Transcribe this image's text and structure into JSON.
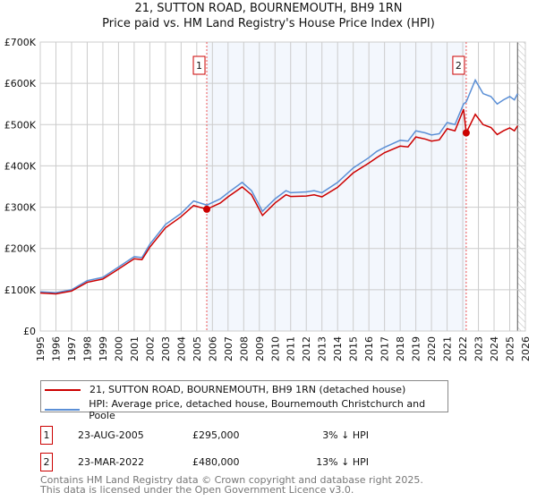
{
  "title": "21, SUTTON ROAD, BOURNEMOUTH, BH9 1RN",
  "subtitle": "Price paid vs. HM Land Registry's House Price Index (HPI)",
  "chart_data": {
    "type": "line",
    "xlim": [
      1995,
      2026
    ],
    "ylim": [
      0,
      700000
    ],
    "yticks": [
      0,
      100000,
      200000,
      300000,
      400000,
      500000,
      600000,
      700000
    ],
    "ytick_labels": [
      "£0",
      "£100K",
      "£200K",
      "£300K",
      "£400K",
      "£500K",
      "£600K",
      "£700K"
    ],
    "xticks": [
      1995,
      1996,
      1997,
      1998,
      1999,
      2000,
      2001,
      2002,
      2003,
      2004,
      2005,
      2006,
      2007,
      2008,
      2009,
      2010,
      2011,
      2012,
      2013,
      2014,
      2015,
      2016,
      2017,
      2018,
      2019,
      2020,
      2021,
      2022,
      2023,
      2024,
      2025,
      2026
    ],
    "grid": true,
    "shaded_range": [
      2005.64,
      2022.22
    ],
    "forecast_from": 2025.5,
    "series": [
      {
        "name": "21, SUTTON ROAD, BOURNEMOUTH, BH9 1RN (detached house)",
        "color": "#cc0000",
        "x": [
          1995,
          1996,
          1997,
          1998,
          1999,
          2000,
          2001,
          2001.5,
          2002,
          2003,
          2004,
          2004.8,
          2005.64,
          2006.5,
          2007,
          2007.9,
          2008.5,
          2009.2,
          2010,
          2010.7,
          2011,
          2012,
          2012.5,
          2013,
          2014,
          2015,
          2016,
          2016.5,
          2017,
          2018,
          2018.5,
          2019,
          2019.6,
          2020,
          2020.5,
          2021,
          2021.5,
          2022.05,
          2022.22,
          2022.8,
          2023.3,
          2023.8,
          2024.2,
          2024.6,
          2025,
          2025.3,
          2025.5
        ],
        "y": [
          92000,
          90000,
          97000,
          118000,
          126000,
          150000,
          175000,
          173000,
          203000,
          250000,
          277000,
          304000,
          295000,
          310000,
          325000,
          349000,
          330000,
          280000,
          310000,
          330000,
          326000,
          327000,
          330000,
          325000,
          348000,
          383000,
          407000,
          420000,
          432000,
          448000,
          446000,
          470000,
          465000,
          460000,
          463000,
          490000,
          485000,
          537000,
          480000,
          525000,
          500000,
          493000,
          476000,
          485000,
          492000,
          485000,
          497000
        ]
      },
      {
        "name": "HPI: Average price, detached house, Bournemouth Christchurch and Poole",
        "color": "#5b8fd6",
        "x": [
          1995,
          1996,
          1997,
          1998,
          1999,
          2000,
          2001,
          2001.5,
          2002,
          2003,
          2004,
          2004.8,
          2005.64,
          2006.5,
          2007,
          2007.9,
          2008.5,
          2009.2,
          2010,
          2010.7,
          2011,
          2012,
          2012.5,
          2013,
          2014,
          2015,
          2016,
          2016.5,
          2017,
          2018,
          2018.5,
          2019,
          2019.6,
          2020,
          2020.5,
          2021,
          2021.5,
          2022.05,
          2022.22,
          2022.8,
          2023.3,
          2023.8,
          2024.2,
          2024.6,
          2025,
          2025.3,
          2025.5
        ],
        "y": [
          95000,
          93000,
          100000,
          122000,
          130000,
          155000,
          180000,
          178000,
          210000,
          258000,
          285000,
          315000,
          305000,
          320000,
          335000,
          360000,
          340000,
          290000,
          320000,
          340000,
          335000,
          337000,
          340000,
          335000,
          360000,
          395000,
          420000,
          435000,
          445000,
          462000,
          460000,
          485000,
          480000,
          475000,
          478000,
          505000,
          500000,
          550000,
          555000,
          608000,
          575000,
          568000,
          550000,
          560000,
          568000,
          560000,
          575000
        ]
      }
    ],
    "markers": [
      {
        "label": "1",
        "x": 2005.64,
        "y": 295000
      },
      {
        "label": "2",
        "x": 2022.22,
        "y": 480000
      }
    ]
  },
  "legend": {
    "items": [
      {
        "label": "21, SUTTON ROAD, BOURNEMOUTH, BH9 1RN (detached house)",
        "color": "#cc0000"
      },
      {
        "label": "HPI: Average price, detached house, Bournemouth Christchurch and Poole",
        "color": "#5b8fd6"
      }
    ]
  },
  "transactions": [
    {
      "num": "1",
      "date": "23-AUG-2005",
      "price": "£295,000",
      "hpi": "3% ↓ HPI"
    },
    {
      "num": "2",
      "date": "23-MAR-2022",
      "price": "£480,000",
      "hpi": "13% ↓ HPI"
    }
  ],
  "footer": {
    "line1": "Contains HM Land Registry data © Crown copyright and database right 2025.",
    "line2": "This data is licensed under the Open Government Licence v3.0."
  }
}
